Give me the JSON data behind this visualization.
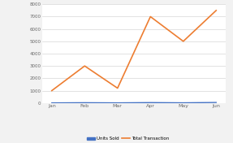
{
  "months": [
    "Jan",
    "Feb",
    "Mar",
    "Apr",
    "May",
    "Jun"
  ],
  "units_sold": [
    5,
    20,
    8,
    30,
    12,
    40
  ],
  "total_transaction": [
    1000,
    3000,
    1200,
    7000,
    5000,
    7500
  ],
  "units_color": "#4472C4",
  "transaction_color": "#ED7D31",
  "ylim": [
    0,
    8000
  ],
  "yticks": [
    0,
    1000,
    2000,
    3000,
    4000,
    5000,
    6000,
    7000,
    8000
  ],
  "background_color": "#f2f2f2",
  "plot_bg_color": "#ffffff",
  "grid_color": "#cccccc",
  "legend_units": "Units Sold",
  "legend_trans": "Total Transaction"
}
